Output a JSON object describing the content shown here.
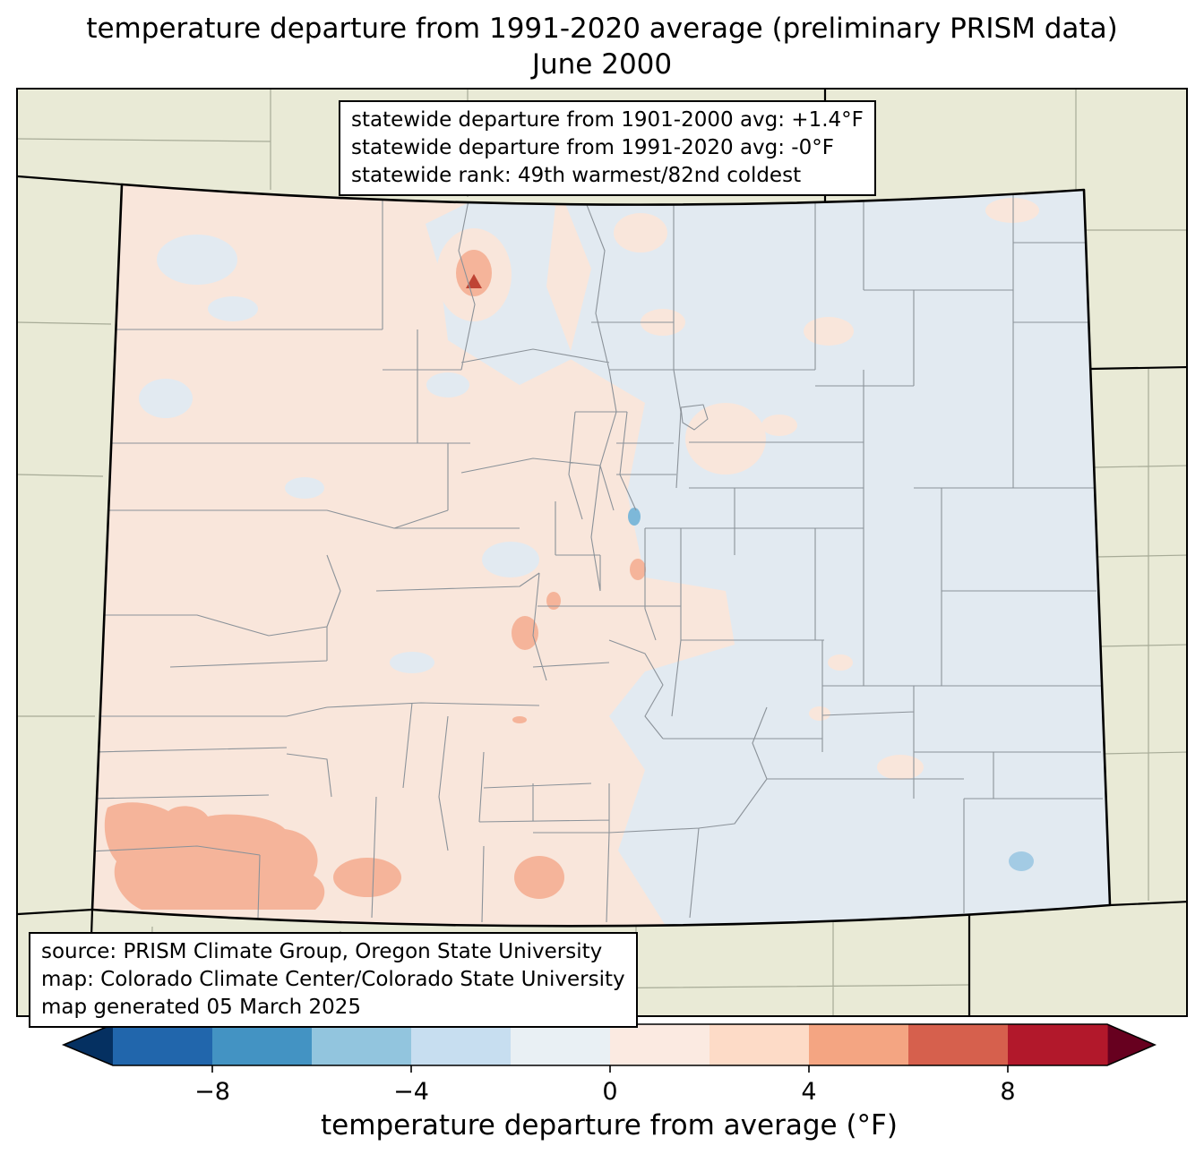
{
  "title": {
    "line1": "temperature departure from 1991-2020 average (preliminary PRISM data)",
    "line2": "June 2000"
  },
  "stats_box": {
    "lines": [
      "statewide departure from 1901-2000 avg: +1.4°F",
      "statewide departure from 1991-2020 avg: -0°F",
      "statewide rank: 49th warmest/82nd coldest"
    ]
  },
  "source_box": {
    "lines": [
      "source: PRISM Climate Group, Oregon State University",
      "map: Colorado Climate Center/Colorado State University",
      "map generated 05 March 2025"
    ]
  },
  "colorbar": {
    "label": "temperature departure from average (°F)",
    "range": [
      -10,
      10
    ],
    "ticks": [
      {
        "label": "−8",
        "value": -8
      },
      {
        "label": "−4",
        "value": -4
      },
      {
        "label": "0",
        "value": 0
      },
      {
        "label": "4",
        "value": 4
      },
      {
        "label": "8",
        "value": 8
      }
    ],
    "arrow_left_color": "#053061",
    "arrow_right_color": "#67001f",
    "segment_colors": [
      "#2166ac",
      "#4393c3",
      "#92c5de",
      "#c7def0",
      "#e9f0f4",
      "#fbeae1",
      "#fddbc7",
      "#f4a582",
      "#d6604d",
      "#b2182b"
    ]
  },
  "map": {
    "region": "Colorado",
    "overlay": "county boundaries",
    "anomaly_pattern": {
      "west_and_central": "0 to +2°F (light warm)",
      "eastern_plains": "0 to −2°F (light cool)",
      "southwest_and_south": "+2 to +4°F patches",
      "southeast_spot": "−2 to −4°F small area"
    }
  },
  "colors": {
    "beige": "#e9ead6",
    "warm_light": "#f9e6db",
    "cool_light": "#e2eaf1",
    "warm_mid": "#f5b49a",
    "warm_deep": "#bf4434",
    "cool_mid": "#a3cbe4",
    "cool_accent": "#7db8d9",
    "county_line": "#8b9299",
    "neighbor_line": "#a7ab97",
    "border": "#000000"
  }
}
